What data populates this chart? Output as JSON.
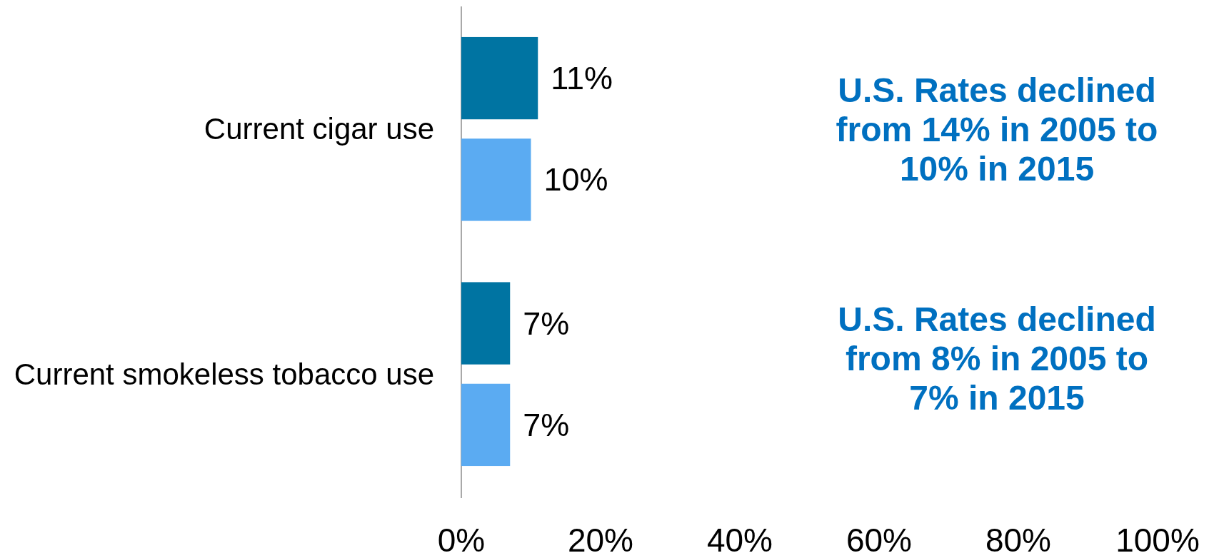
{
  "chart_data": {
    "type": "bar",
    "orientation": "horizontal",
    "categories": [
      "Current cigar use",
      "Current smokeless tobacco use"
    ],
    "series": [
      {
        "color": "#0074a2",
        "values": [
          11,
          7
        ],
        "value_labels": [
          "11%",
          "7%"
        ]
      },
      {
        "color": "#5babf2",
        "values": [
          10,
          7
        ],
        "value_labels": [
          "10%",
          "7%"
        ]
      }
    ],
    "xlim": [
      0,
      100
    ],
    "xticks": [
      {
        "value": 0,
        "label": "0%"
      },
      {
        "value": 20,
        "label": "20%"
      },
      {
        "value": 40,
        "label": "40%"
      },
      {
        "value": 60,
        "label": "60%"
      },
      {
        "value": 80,
        "label": "80%"
      },
      {
        "value": 100,
        "label": "100%"
      }
    ],
    "annotations": [
      "U.S. Rates declined from 14% in 2005 to 10% in 2015",
      "U.S. Rates declined from 8% in 2005 to 7% in 2015"
    ]
  }
}
